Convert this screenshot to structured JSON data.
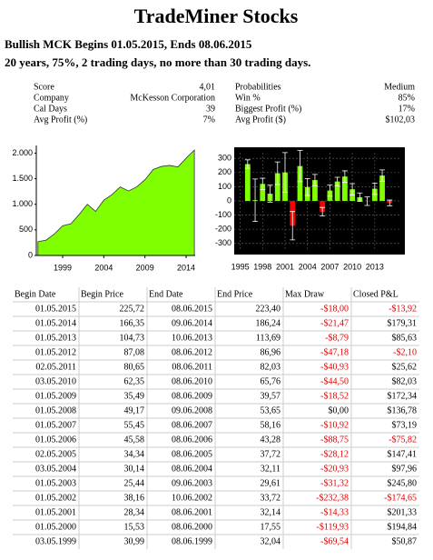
{
  "header": {
    "title": "TradeMiner Stocks",
    "line1": "Bullish MCK Begins 01.05.2015, Ends 08.06.2015",
    "line2": "20 years, 75%, 2 trading days, no more than 30 trading days."
  },
  "stats": {
    "left": [
      [
        "Score",
        "4,01"
      ],
      [
        "Company",
        "McKesson Corporation"
      ],
      [
        "Cal Days",
        "39"
      ],
      [
        "Avg Profit (%)",
        "7%"
      ]
    ],
    "right": [
      [
        "Probabilities",
        "Medium"
      ],
      [
        "Win %",
        "85%"
      ],
      [
        "Biggest Profit (%)",
        "17%"
      ],
      [
        "Avg Profit ($)",
        "$102,03"
      ]
    ]
  },
  "chart_data": [
    {
      "type": "area",
      "color": "#7fff00",
      "x": [
        1996,
        1997,
        1998,
        1999,
        2000,
        2001,
        2002,
        2003,
        2004,
        2005,
        2006,
        2007,
        2008,
        2009,
        2010,
        2011,
        2012,
        2013,
        2014,
        2015
      ],
      "values": [
        270,
        300,
        420,
        580,
        620,
        800,
        1000,
        860,
        1080,
        1190,
        1340,
        1260,
        1340,
        1480,
        1680,
        1740,
        1760,
        1730,
        1900,
        2060
      ],
      "xlim": [
        1995.8,
        2015.1
      ],
      "xticks": [
        1999,
        2004,
        2009,
        2014
      ],
      "ylim": [
        0,
        2150
      ],
      "yticks": [
        0,
        500,
        {
          "value": 1000,
          "label": "1.000"
        },
        {
          "value": 1500,
          "label": "1.500"
        },
        {
          "value": 2000,
          "label": "2.000"
        }
      ]
    },
    {
      "type": "bar",
      "color": "#7fff00",
      "negative_color": "#ff0000",
      "x": [
        1996,
        1997,
        1998,
        1999,
        2000,
        2001,
        2002,
        2003,
        2004,
        2005,
        2006,
        2007,
        2008,
        2009,
        2010,
        2011,
        2012,
        2013,
        2014,
        2015
      ],
      "values": [
        260,
        5,
        120,
        51,
        195,
        201,
        -175,
        246,
        98,
        147,
        -76,
        73,
        137,
        172,
        82,
        26,
        -2,
        86,
        179,
        -14
      ],
      "errors": [
        30,
        150,
        40,
        60,
        80,
        140,
        100,
        110,
        60,
        40,
        30,
        40,
        30,
        40,
        40,
        30,
        30,
        40,
        40,
        20
      ],
      "xlim": [
        1994.2,
        2016.3
      ],
      "xticks": [
        1995,
        1998,
        2001,
        2004,
        2007,
        2010,
        2013
      ],
      "ylim": [
        -340,
        340
      ],
      "yticks": [
        -300,
        -200,
        -100,
        0,
        100,
        200,
        300
      ]
    }
  ],
  "table": {
    "header": [
      "Begin Date",
      "Begin Price",
      "End Date",
      "End Price",
      "Max Draw",
      "Closed P&L"
    ],
    "rows": [
      [
        "01.05.2015",
        "225,72",
        "08.06.2015",
        "223,40",
        "-$18,00",
        "-$13,92"
      ],
      [
        "01.05.2014",
        "166,35",
        "09.06.2014",
        "186,24",
        "-$21,47",
        "$179,31"
      ],
      [
        "01.05.2013",
        "104,73",
        "10.06.2013",
        "113,69",
        "-$8,79",
        "$85,63"
      ],
      [
        "01.05.2012",
        "87,08",
        "08.06.2012",
        "86,96",
        "-$47,18",
        "-$2,10"
      ],
      [
        "02.05.2011",
        "80,65",
        "08.06.2011",
        "82,03",
        "-$40,93",
        "$25,62"
      ],
      [
        "03.05.2010",
        "62,35",
        "08.06.2010",
        "65,76",
        "-$44,50",
        "$82,03"
      ],
      [
        "01.05.2009",
        "35,49",
        "08.06.2009",
        "39,57",
        "-$18,52",
        "$172,34"
      ],
      [
        "01.05.2008",
        "49,17",
        "09.06.2008",
        "53,65",
        "$0,00",
        "$136,78"
      ],
      [
        "01.05.2007",
        "55,45",
        "08.06.2007",
        "58,16",
        "-$10,92",
        "$73,19"
      ],
      [
        "01.05.2006",
        "45,58",
        "08.06.2006",
        "43,28",
        "-$88,75",
        "-$75,82"
      ],
      [
        "02.05.2005",
        "34,34",
        "08.06.2005",
        "37,72",
        "-$28,12",
        "$147,41"
      ],
      [
        "03.05.2004",
        "30,14",
        "08.06.2004",
        "32,11",
        "-$20,93",
        "$97,96"
      ],
      [
        "01.05.2003",
        "25,44",
        "09.06.2003",
        "29,61",
        "-$31,32",
        "$245,80"
      ],
      [
        "01.05.2002",
        "38,16",
        "10.06.2002",
        "33,72",
        "-$232,38",
        "-$174,65"
      ],
      [
        "01.05.2001",
        "28,34",
        "08.06.2001",
        "32,14",
        "-$14,33",
        "$201,33"
      ],
      [
        "01.05.2000",
        "15,53",
        "08.06.2000",
        "17,55",
        "-$119,93",
        "$194,84"
      ],
      [
        "03.05.1999",
        "30,99",
        "08.06.1999",
        "32,04",
        "-$69,54",
        "$50,87"
      ]
    ]
  }
}
